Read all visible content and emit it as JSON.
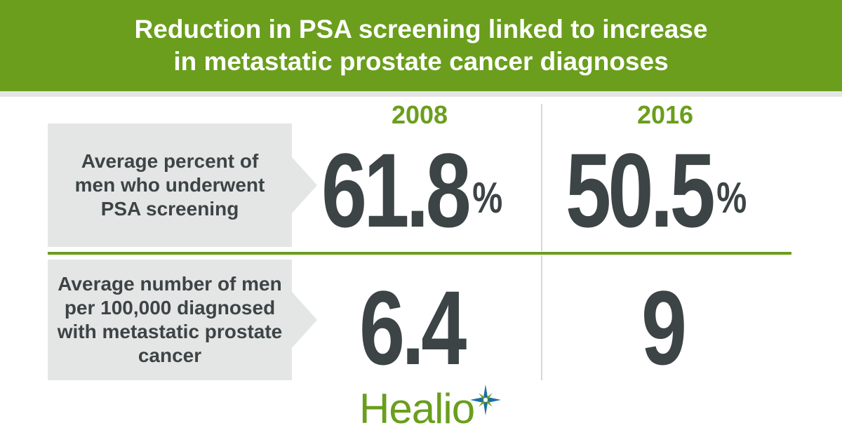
{
  "header": {
    "title_line1": "Reduction in PSA screening linked to increase",
    "title_line2": "in metastatic prostate cancer diagnoses"
  },
  "years": [
    "2008",
    "2016"
  ],
  "rows": [
    {
      "label_lines": [
        "Average percent of",
        "men who underwent",
        "PSA screening"
      ],
      "values": [
        "61.8",
        "50.5"
      ],
      "unit": "%"
    },
    {
      "label_lines": [
        "Average number of men",
        "per 100,000 diagnosed",
        "with metastatic prostate",
        "cancer"
      ],
      "values": [
        "6.4",
        "9"
      ],
      "unit": ""
    }
  ],
  "logo": {
    "text": "Healio",
    "icon": "star-burst-icon"
  },
  "colors": {
    "accent": "#6a9e1c",
    "text": "#3d4446",
    "label_bg": "#e4e6e6",
    "logo_star": "#1d6fa8"
  }
}
